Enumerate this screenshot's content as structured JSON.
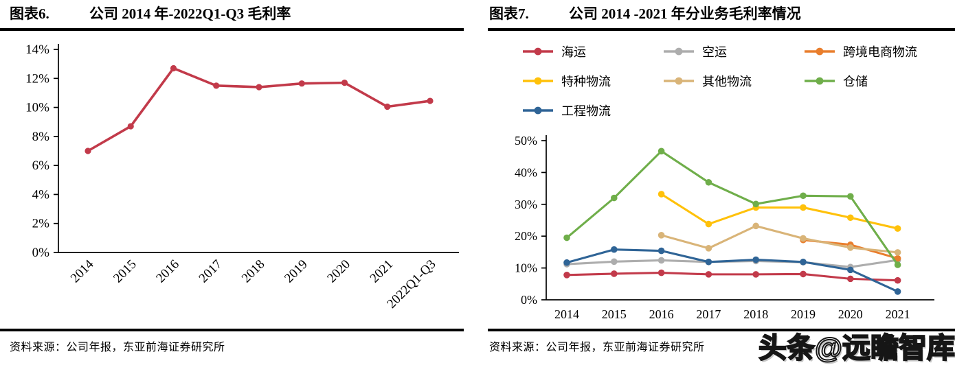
{
  "figures": [
    {
      "label": "图表6.",
      "title": "公司 2014 年-2022Q1-Q3 毛利率",
      "source": "资料来源：公司年报，东亚前海证券研究所"
    },
    {
      "label": "图表7.",
      "title": "公司 2014 -2021 年分业务毛利率情况",
      "source": "资料来源：公司年报，东亚前海证券研究所"
    }
  ],
  "watermark": "头条@远瞻智库",
  "chart_data": [
    {
      "type": "line",
      "title": "公司 2014 年-2022Q1-Q3 毛利率",
      "categories": [
        "2014",
        "2015",
        "2016",
        "2017",
        "2018",
        "2019",
        "2020",
        "2021",
        "2022Q1-Q3"
      ],
      "series": [
        {
          "name": "毛利率",
          "color": "#c23a4a",
          "values": [
            7.0,
            8.7,
            12.7,
            11.5,
            11.4,
            11.65,
            11.7,
            10.05,
            10.45
          ]
        }
      ],
      "xlabel": "",
      "ylabel": "",
      "ylim": [
        0,
        14
      ],
      "ystep": 2,
      "tick_suffix": "%",
      "grid": false,
      "legend": false,
      "x_label_rotation": -45
    },
    {
      "type": "line",
      "title": "公司 2014 -2021 年分业务毛利率情况",
      "categories": [
        "2014",
        "2015",
        "2016",
        "2017",
        "2018",
        "2019",
        "2020",
        "2021"
      ],
      "series": [
        {
          "name": "海运",
          "color": "#c23a4a",
          "values": [
            7.8,
            8.2,
            8.5,
            8.0,
            8.0,
            8.1,
            6.6,
            6.1
          ]
        },
        {
          "name": "空运",
          "color": "#adadad",
          "values": [
            11.2,
            12.0,
            12.4,
            11.9,
            12.2,
            11.8,
            10.3,
            12.5
          ]
        },
        {
          "name": "跨境电商物流",
          "color": "#e97e2d",
          "values": [
            null,
            null,
            null,
            null,
            null,
            18.8,
            17.3,
            13.0
          ]
        },
        {
          "name": "特种物流",
          "color": "#ffc10a",
          "values": [
            null,
            null,
            33.2,
            23.8,
            29.0,
            29.0,
            25.8,
            22.4
          ]
        },
        {
          "name": "其他物流",
          "color": "#d9b478",
          "values": [
            null,
            null,
            20.3,
            16.2,
            23.2,
            19.3,
            16.4,
            14.9
          ]
        },
        {
          "name": "仓储",
          "color": "#6fae4a",
          "values": [
            19.5,
            32.0,
            46.7,
            36.9,
            30.1,
            32.7,
            32.5,
            11.0
          ]
        },
        {
          "name": "工程物流",
          "color": "#2f6496",
          "values": [
            11.7,
            15.8,
            15.4,
            11.9,
            12.6,
            11.9,
            9.4,
            2.6
          ]
        }
      ],
      "xlabel": "",
      "ylabel": "",
      "ylim": [
        0,
        50
      ],
      "ystep": 10,
      "tick_suffix": "%",
      "grid": false,
      "legend_position": "top",
      "x_label_rotation": 0
    }
  ]
}
